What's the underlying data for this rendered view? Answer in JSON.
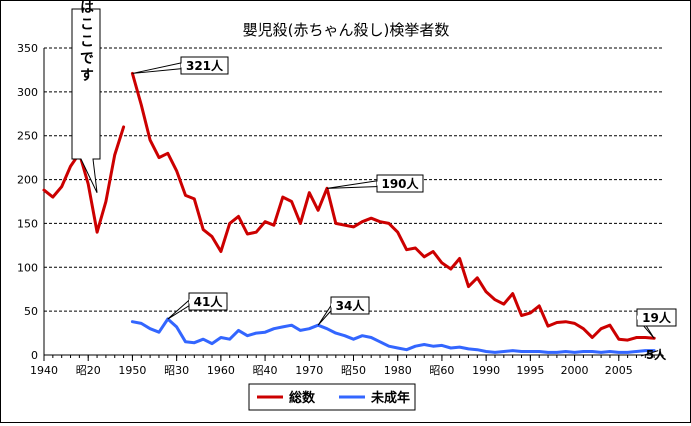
{
  "chart_data": {
    "type": "line",
    "title": "嬰児殺(赤ちゃん殺し)検挙者数",
    "xlabel": "",
    "ylabel": "",
    "xlim": [
      1940,
      2010
    ],
    "ylim": [
      0,
      350
    ],
    "y_ticks": [
      0,
      50,
      100,
      150,
      200,
      250,
      300,
      350
    ],
    "x_ticks": [
      {
        "x": 1940,
        "label": "1940"
      },
      {
        "x": 1945,
        "label": "昭20"
      },
      {
        "x": 1950,
        "label": "1950"
      },
      {
        "x": 1955,
        "label": "昭30"
      },
      {
        "x": 1960,
        "label": "1960"
      },
      {
        "x": 1965,
        "label": "昭40"
      },
      {
        "x": 1970,
        "label": "1970"
      },
      {
        "x": 1975,
        "label": "昭50"
      },
      {
        "x": 1980,
        "label": "1980"
      },
      {
        "x": 1985,
        "label": "昭60"
      },
      {
        "x": 1990,
        "label": "1990"
      },
      {
        "x": 1995,
        "label": "1995"
      },
      {
        "x": 2000,
        "label": "2000"
      },
      {
        "x": 2005,
        "label": "2005"
      }
    ],
    "grid": true,
    "colors": {
      "total": "#cc0000",
      "minor": "#3366ff"
    },
    "legend": {
      "position": "bottom-center",
      "entries": [
        {
          "key": "total",
          "label": "総数"
        },
        {
          "key": "minor",
          "label": "未成年"
        }
      ]
    },
    "series": [
      {
        "key": "total",
        "name": "総数",
        "segments": [
          [
            [
              1940,
              188
            ],
            [
              1941,
              180
            ],
            [
              1942,
              192
            ],
            [
              1943,
              215
            ],
            [
              1944,
              230
            ],
            [
              1945,
              195
            ],
            [
              1946,
              140
            ],
            [
              1947,
              175
            ],
            [
              1948,
              228
            ],
            [
              1949,
              260
            ]
          ],
          [
            [
              1950,
              321
            ],
            [
              1951,
              285
            ],
            [
              1952,
              245
            ],
            [
              1953,
              225
            ],
            [
              1954,
              230
            ],
            [
              1955,
              210
            ],
            [
              1956,
              182
            ],
            [
              1957,
              178
            ],
            [
              1958,
              143
            ],
            [
              1959,
              135
            ],
            [
              1960,
              118
            ],
            [
              1961,
              150
            ],
            [
              1962,
              158
            ],
            [
              1963,
              138
            ],
            [
              1964,
              140
            ],
            [
              1965,
              152
            ],
            [
              1966,
              148
            ],
            [
              1967,
              180
            ],
            [
              1968,
              175
            ],
            [
              1969,
              150
            ],
            [
              1970,
              185
            ],
            [
              1971,
              165
            ],
            [
              1972,
              190
            ],
            [
              1973,
              150
            ],
            [
              1974,
              148
            ],
            [
              1975,
              146
            ],
            [
              1976,
              152
            ],
            [
              1977,
              156
            ],
            [
              1978,
              152
            ],
            [
              1979,
              150
            ],
            [
              1980,
              140
            ],
            [
              1981,
              120
            ],
            [
              1982,
              122
            ],
            [
              1983,
              112
            ],
            [
              1984,
              118
            ],
            [
              1985,
              105
            ],
            [
              1986,
              98
            ],
            [
              1987,
              110
            ],
            [
              1988,
              78
            ],
            [
              1989,
              88
            ],
            [
              1990,
              72
            ],
            [
              1991,
              63
            ],
            [
              1992,
              58
            ],
            [
              1993,
              70
            ],
            [
              1994,
              45
            ],
            [
              1995,
              48
            ],
            [
              1996,
              56
            ],
            [
              1997,
              33
            ],
            [
              1998,
              37
            ],
            [
              1999,
              38
            ],
            [
              2000,
              36
            ],
            [
              2001,
              30
            ],
            [
              2002,
              20
            ],
            [
              2003,
              30
            ],
            [
              2004,
              34
            ],
            [
              2005,
              18
            ],
            [
              2006,
              17
            ],
            [
              2007,
              20
            ],
            [
              2008,
              20
            ],
            [
              2009,
              19
            ]
          ]
        ]
      },
      {
        "key": "minor",
        "name": "未成年",
        "segments": [
          [
            [
              1950,
              38
            ],
            [
              1951,
              36
            ],
            [
              1952,
              30
            ],
            [
              1953,
              26
            ],
            [
              1954,
              41
            ],
            [
              1955,
              32
            ],
            [
              1956,
              15
            ],
            [
              1957,
              14
            ],
            [
              1958,
              18
            ],
            [
              1959,
              13
            ],
            [
              1960,
              20
            ],
            [
              1961,
              18
            ],
            [
              1962,
              28
            ],
            [
              1963,
              22
            ],
            [
              1964,
              25
            ],
            [
              1965,
              26
            ],
            [
              1966,
              30
            ],
            [
              1967,
              32
            ],
            [
              1968,
              34
            ],
            [
              1969,
              28
            ],
            [
              1970,
              30
            ],
            [
              1971,
              34
            ],
            [
              1972,
              30
            ],
            [
              1973,
              25
            ],
            [
              1974,
              22
            ],
            [
              1975,
              18
            ],
            [
              1976,
              22
            ],
            [
              1977,
              20
            ],
            [
              1978,
              15
            ],
            [
              1979,
              10
            ],
            [
              1980,
              8
            ],
            [
              1981,
              6
            ],
            [
              1982,
              10
            ],
            [
              1983,
              12
            ],
            [
              1984,
              10
            ],
            [
              1985,
              11
            ],
            [
              1986,
              8
            ],
            [
              1987,
              9
            ],
            [
              1988,
              7
            ],
            [
              1989,
              6
            ],
            [
              1990,
              4
            ],
            [
              1991,
              3
            ],
            [
              1992,
              4
            ],
            [
              1993,
              5
            ],
            [
              1994,
              4
            ],
            [
              1995,
              4
            ],
            [
              1996,
              4
            ],
            [
              1997,
              3
            ],
            [
              1998,
              3
            ],
            [
              1999,
              4
            ],
            [
              2000,
              3
            ],
            [
              2001,
              4
            ],
            [
              2002,
              4
            ],
            [
              2003,
              3
            ],
            [
              2004,
              4
            ],
            [
              2005,
              3
            ],
            [
              2006,
              3
            ],
            [
              2007,
              4
            ],
            [
              2008,
              5
            ],
            [
              2009,
              5
            ]
          ]
        ]
      }
    ],
    "annotations": [
      {
        "text": "321人",
        "x": 1950,
        "y": 321,
        "shape": "box"
      },
      {
        "text": "190人",
        "x": 1972,
        "y": 190,
        "shape": "box"
      },
      {
        "text": "41人",
        "x": 1954,
        "y": 41,
        "shape": "box"
      },
      {
        "text": "34人",
        "x": 1971,
        "y": 34,
        "shape": "box"
      },
      {
        "text": "19人",
        "x": 2009,
        "y": 19,
        "shape": "box"
      },
      {
        "text": "5人",
        "x": 2009,
        "y": 5,
        "shape": "plain"
      },
      {
        "text": "終戦はここです",
        "x": 1946,
        "y": 185,
        "shape": "vertical-box"
      }
    ]
  }
}
